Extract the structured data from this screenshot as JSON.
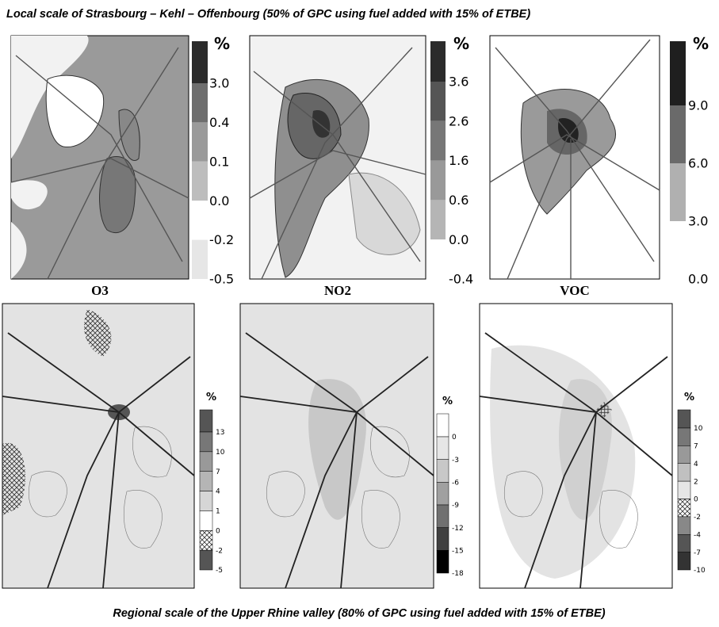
{
  "top_title": "Local scale of Strasbourg – Kehl – Offenbourg (50% of GPC using fuel added with 15% of ETBE)",
  "local_panels": [
    {
      "label": "O3",
      "unit": "%",
      "legend": [
        "3.0",
        "0.4",
        "0.1",
        "0.0",
        "-0.2",
        "-0.5"
      ]
    },
    {
      "label": "NO2",
      "unit": "%",
      "legend": [
        "3.6",
        "2.6",
        "1.6",
        "0.6",
        "0.0",
        "-0.4"
      ]
    },
    {
      "label": "VOC",
      "unit": "%",
      "legend": [
        "9.0",
        "6.0",
        "3.0",
        "0.0"
      ]
    }
  ],
  "regional_panels": [
    {
      "unit": "%",
      "legend": [
        "13",
        "10",
        "7",
        "4",
        "1",
        "0",
        "-2",
        "-5"
      ]
    },
    {
      "unit": "%",
      "legend": [
        "0",
        "-3",
        "-6",
        "-9",
        "-12",
        "-15",
        "-18"
      ]
    },
    {
      "unit": "%",
      "legend": [
        "10",
        "7",
        "4",
        "2",
        "0",
        "-2",
        "-4",
        "-7",
        "-10"
      ]
    }
  ],
  "bottom_title": "Regional scale of the Upper Rhine valley (80% of GPC using fuel added with 15% of ETBE)"
}
